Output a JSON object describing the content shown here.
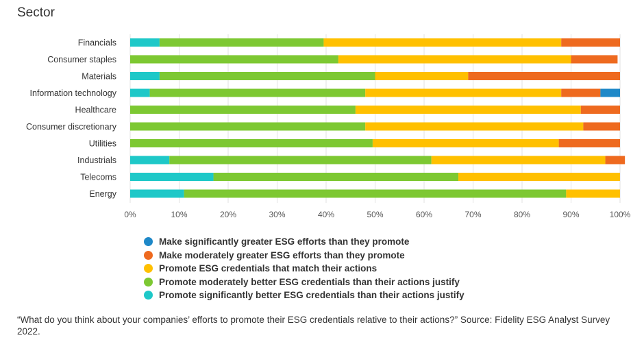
{
  "title": "Sector",
  "footnote": "“What do you think about your companies’ efforts to promote their ESG credentials relative to their actions?” Source: Fidelity ESG Analyst Survey 2022.",
  "chart_data": {
    "type": "bar",
    "orientation": "horizontal",
    "stacked": true,
    "title": "Sector",
    "xlim": [
      0,
      100
    ],
    "x_ticks": [
      "0%",
      "10%",
      "20%",
      "30%",
      "40%",
      "50%",
      "60%",
      "70%",
      "80%",
      "90%",
      "100%"
    ],
    "grid": true,
    "legend_position": "bottom",
    "categories": [
      "Financials",
      "Consumer staples",
      "Materials",
      "Information technology",
      "Healthcare",
      "Consumer discretionary",
      "Utilities",
      "Industrials",
      "Telecoms",
      "Energy"
    ],
    "series": [
      {
        "name": "Promote significantly better ESG credentials than their actions justify",
        "color": "#1ec8c8",
        "values": [
          6,
          0,
          6,
          4,
          0,
          0,
          0,
          8,
          17,
          11
        ]
      },
      {
        "name": "Promote moderately better ESG credentials than their actions justify",
        "color": "#7dc832",
        "values": [
          33.5,
          42.5,
          44,
          44,
          46,
          48,
          49.5,
          53.5,
          50,
          78
        ]
      },
      {
        "name": "Promote ESG credentials that match their actions",
        "color": "#ffc000",
        "values": [
          48.5,
          47.5,
          19,
          40,
          46,
          44.5,
          38,
          35.5,
          33,
          11
        ]
      },
      {
        "name": "Make moderately greater ESG efforts than they promote",
        "color": "#ee6a1f",
        "values": [
          12,
          9.5,
          31,
          8,
          8,
          7.5,
          12.5,
          4,
          0,
          0
        ]
      },
      {
        "name": "Make significantly greater ESG efforts than they promote",
        "color": "#1e88c8",
        "values": [
          0,
          0,
          0,
          4,
          0,
          0,
          0,
          0,
          0,
          0
        ]
      }
    ],
    "legend_order": [
      "Make significantly greater ESG efforts than they promote",
      "Make moderately greater ESG efforts than they promote",
      "Promote ESG credentials that match their actions",
      "Promote moderately better ESG credentials than their actions justify",
      "Promote significantly better ESG credentials than their actions justify"
    ]
  }
}
